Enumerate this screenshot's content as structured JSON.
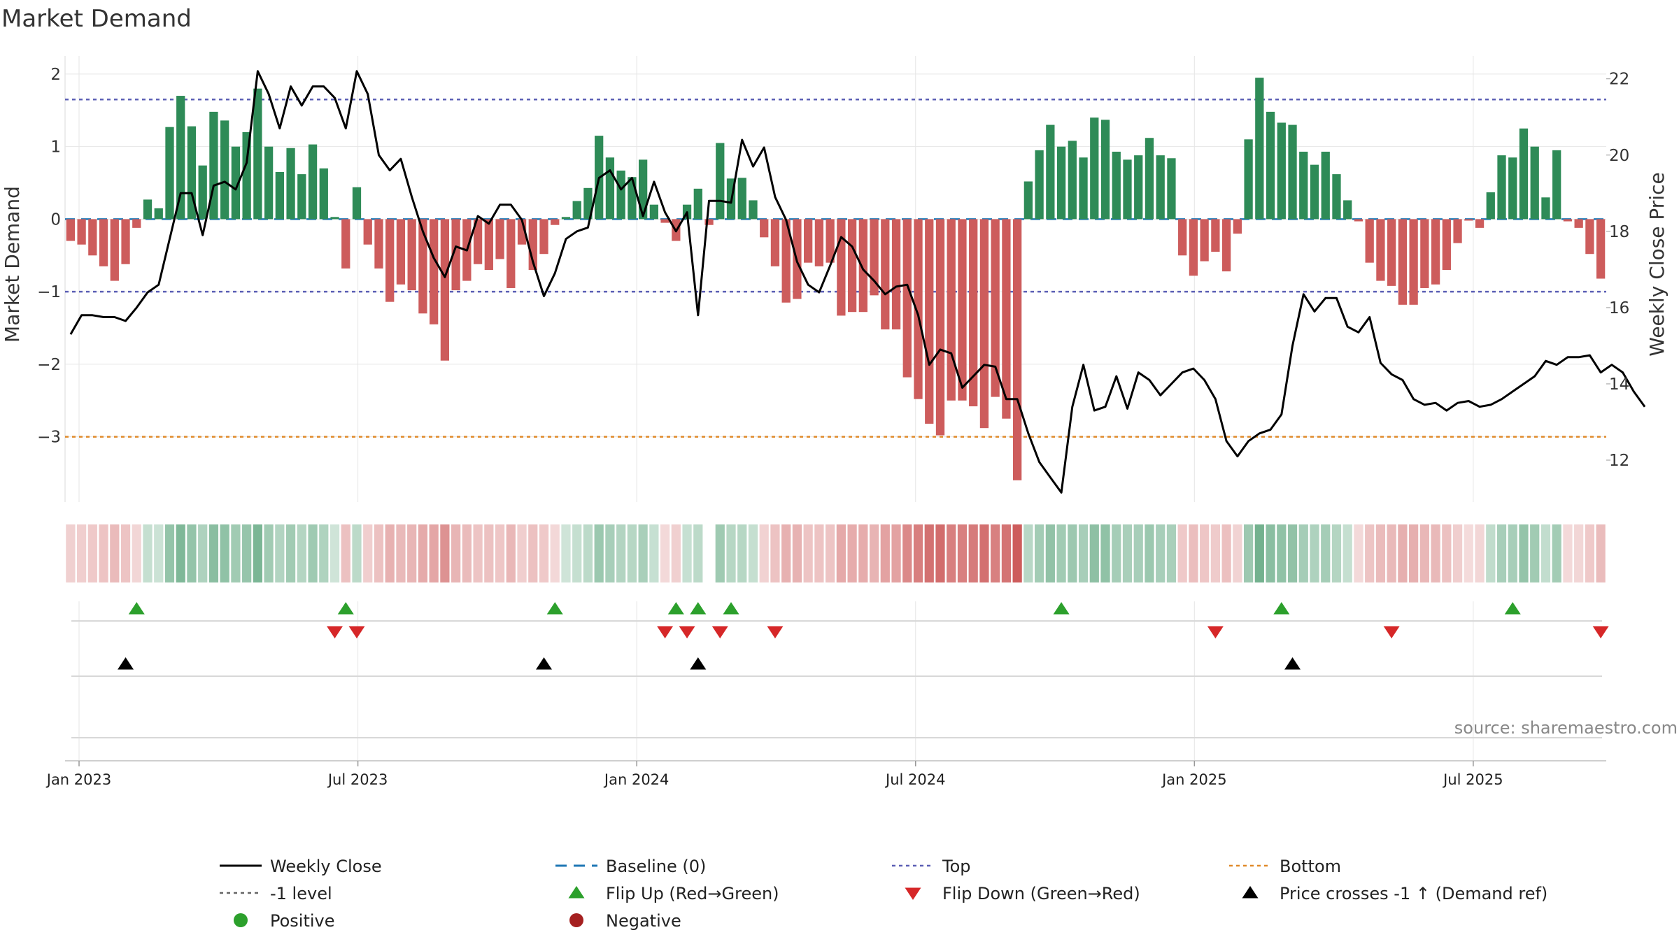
{
  "title": "Market Demand",
  "source_note": "source: sharemaestro.com",
  "chart_data": {
    "type": "bar",
    "title": "Market Demand",
    "ylabel_left": "Market Demand",
    "ylabel_right": "Weekly Close Price",
    "ylim_left": [
      -3.9,
      2.25
    ],
    "ylim_right": [
      10.9,
      22.6
    ],
    "left_ticks": [
      {
        "v": 2,
        "label": "2"
      },
      {
        "v": 1,
        "label": "1"
      },
      {
        "v": 0,
        "label": "0"
      },
      {
        "v": -1,
        "label": "−1"
      },
      {
        "v": -2,
        "label": "−2"
      },
      {
        "v": -3,
        "label": "−3"
      }
    ],
    "right_ticks": [
      {
        "v": 22,
        "label": "22"
      },
      {
        "v": 20,
        "label": "20"
      },
      {
        "v": 18,
        "label": "18"
      },
      {
        "v": 16,
        "label": "16"
      },
      {
        "v": 14,
        "label": "14"
      },
      {
        "v": 12,
        "label": "12"
      }
    ],
    "x_ticks": [
      {
        "week": 0,
        "label": "Jan 2023"
      },
      {
        "week": 26,
        "label": "Jul 2023"
      },
      {
        "week": 52,
        "label": "Jan 2024"
      },
      {
        "week": 78,
        "label": "Jul 2024"
      },
      {
        "week": 104,
        "label": "Jan 2025"
      },
      {
        "week": 130,
        "label": "Jul 2025"
      }
    ],
    "reference_lines": {
      "top": 1.65,
      "minus_one": -1,
      "bottom": -3,
      "baseline": 0
    },
    "demand": [
      -0.3,
      -0.35,
      -0.5,
      -0.65,
      -0.85,
      -0.62,
      -0.12,
      0.27,
      0.15,
      1.27,
      1.7,
      1.28,
      0.74,
      1.48,
      1.36,
      1.0,
      1.2,
      1.8,
      1.0,
      0.65,
      0.98,
      0.62,
      1.03,
      0.7,
      0.03,
      -0.68,
      0.44,
      -0.35,
      -0.68,
      -1.14,
      -0.9,
      -0.98,
      -1.3,
      -1.45,
      -1.95,
      -0.98,
      -0.85,
      -0.62,
      -0.7,
      -0.55,
      -0.95,
      -0.35,
      -0.7,
      -0.48,
      -0.08,
      0.03,
      0.25,
      0.43,
      1.15,
      0.85,
      0.67,
      0.58,
      0.82,
      0.2,
      -0.05,
      -0.3,
      0.2,
      0.42,
      -0.08,
      1.05,
      0.56,
      0.57,
      0.26,
      -0.25,
      -0.65,
      -1.15,
      -1.1,
      -0.6,
      -0.65,
      -0.6,
      -1.33,
      -1.28,
      -1.28,
      -1.05,
      -1.52,
      -1.52,
      -2.18,
      -2.48,
      -2.82,
      -2.98,
      -2.5,
      -2.5,
      -2.58,
      -2.88,
      -2.45,
      -2.75,
      -3.6,
      0.52,
      0.95,
      1.3,
      1.0,
      1.08,
      0.85,
      1.4,
      1.37,
      0.93,
      0.82,
      0.88,
      1.12,
      0.88,
      0.84,
      -0.5,
      -0.78,
      -0.58,
      -0.45,
      -0.72,
      -0.2,
      1.1,
      1.95,
      1.48,
      1.33,
      1.3,
      0.93,
      0.75,
      0.93,
      0.62,
      0.26,
      -0.03,
      -0.6,
      -0.85,
      -0.92,
      -1.18,
      -1.18,
      -0.95,
      -0.9,
      -0.7,
      -0.33,
      -0.02,
      -0.12,
      0.37,
      0.88,
      0.85,
      1.25,
      1.0,
      0.3,
      0.95,
      -0.03,
      -0.12,
      -0.48,
      -0.82
    ],
    "close": [
      15.3,
      15.8,
      15.8,
      15.75,
      15.75,
      15.65,
      16.0,
      16.4,
      16.6,
      17.8,
      19.0,
      19.0,
      17.9,
      19.2,
      19.3,
      19.1,
      19.8,
      22.2,
      21.6,
      20.7,
      21.8,
      21.3,
      21.8,
      21.8,
      21.5,
      20.7,
      22.2,
      21.6,
      20.0,
      19.6,
      19.9,
      18.9,
      18.0,
      17.3,
      16.8,
      17.6,
      17.5,
      18.4,
      18.2,
      18.7,
      18.7,
      18.3,
      17.2,
      16.3,
      16.9,
      17.8,
      18.0,
      18.1,
      19.4,
      19.6,
      19.1,
      19.4,
      18.4,
      19.3,
      18.5,
      18.0,
      18.5,
      15.8,
      18.8,
      18.8,
      18.75,
      20.4,
      19.7,
      20.2,
      18.9,
      18.3,
      17.2,
      16.6,
      16.4,
      17.1,
      17.85,
      17.6,
      17.0,
      16.7,
      16.35,
      16.55,
      16.6,
      15.8,
      14.5,
      14.9,
      14.8,
      13.9,
      14.2,
      14.5,
      14.45,
      13.6,
      13.6,
      12.7,
      11.95,
      11.55,
      11.15,
      13.4,
      14.5,
      13.3,
      13.4,
      14.2,
      13.35,
      14.3,
      14.1,
      13.7,
      14.0,
      14.3,
      14.4,
      14.1,
      13.6,
      12.5,
      12.1,
      12.5,
      12.7,
      12.8,
      13.2,
      15.0,
      16.35,
      15.9,
      16.25,
      16.25,
      15.5,
      15.35,
      15.75,
      14.55,
      14.25,
      14.1,
      13.6,
      13.45,
      13.5,
      13.3,
      13.5,
      13.55,
      13.4,
      13.45,
      13.6,
      13.8,
      14.0,
      14.2,
      14.6,
      14.5,
      14.7,
      14.7,
      14.75,
      14.3,
      14.5,
      14.3,
      13.8,
      13.4
    ],
    "flip_up_weeks": [
      6,
      25,
      44,
      55,
      57,
      60,
      90,
      110,
      131
    ],
    "flip_down_weeks": [
      24,
      26,
      54,
      56,
      59,
      64,
      104,
      120,
      139
    ],
    "price_cross_weeks": [
      5,
      43,
      57,
      111
    ],
    "legend": [
      {
        "label": "Weekly Close",
        "symbol": "line",
        "color": "#000000"
      },
      {
        "label": "Baseline (0)",
        "symbol": "dash",
        "color": "#1f77b4"
      },
      {
        "label": "Top",
        "symbol": "dot",
        "color": "#5b5fb5"
      },
      {
        "label": "Bottom",
        "symbol": "dot",
        "color": "#e08a2a"
      },
      {
        "label": "-1 level",
        "symbol": "dot",
        "color": "#666666"
      },
      {
        "label": "Flip Up (Red→Green)",
        "symbol": "tri-up",
        "color": "#2ca02c"
      },
      {
        "label": "Flip Down (Green→Red)",
        "symbol": "tri-down",
        "color": "#d62728"
      },
      {
        "label": "Price crosses -1 ↑ (Demand ref)",
        "symbol": "tri-up",
        "color": "#000000"
      },
      {
        "label": "Positive",
        "symbol": "circle",
        "color": "#2ca02c"
      },
      {
        "label": "Negative",
        "symbol": "circle",
        "color": "#a52020"
      }
    ]
  },
  "colors": {
    "positive_bar": "#2e8b57",
    "negative_bar": "#cd5c5c",
    "price_line": "#000000",
    "baseline": "#1f77b4",
    "top_line": "#5b5fb5",
    "minus_one_line": "#666666",
    "bottom_line": "#e08a2a",
    "flip_up": "#2ca02c",
    "flip_down": "#d62728",
    "cross": "#000000",
    "grid": "#e6e6e6"
  }
}
